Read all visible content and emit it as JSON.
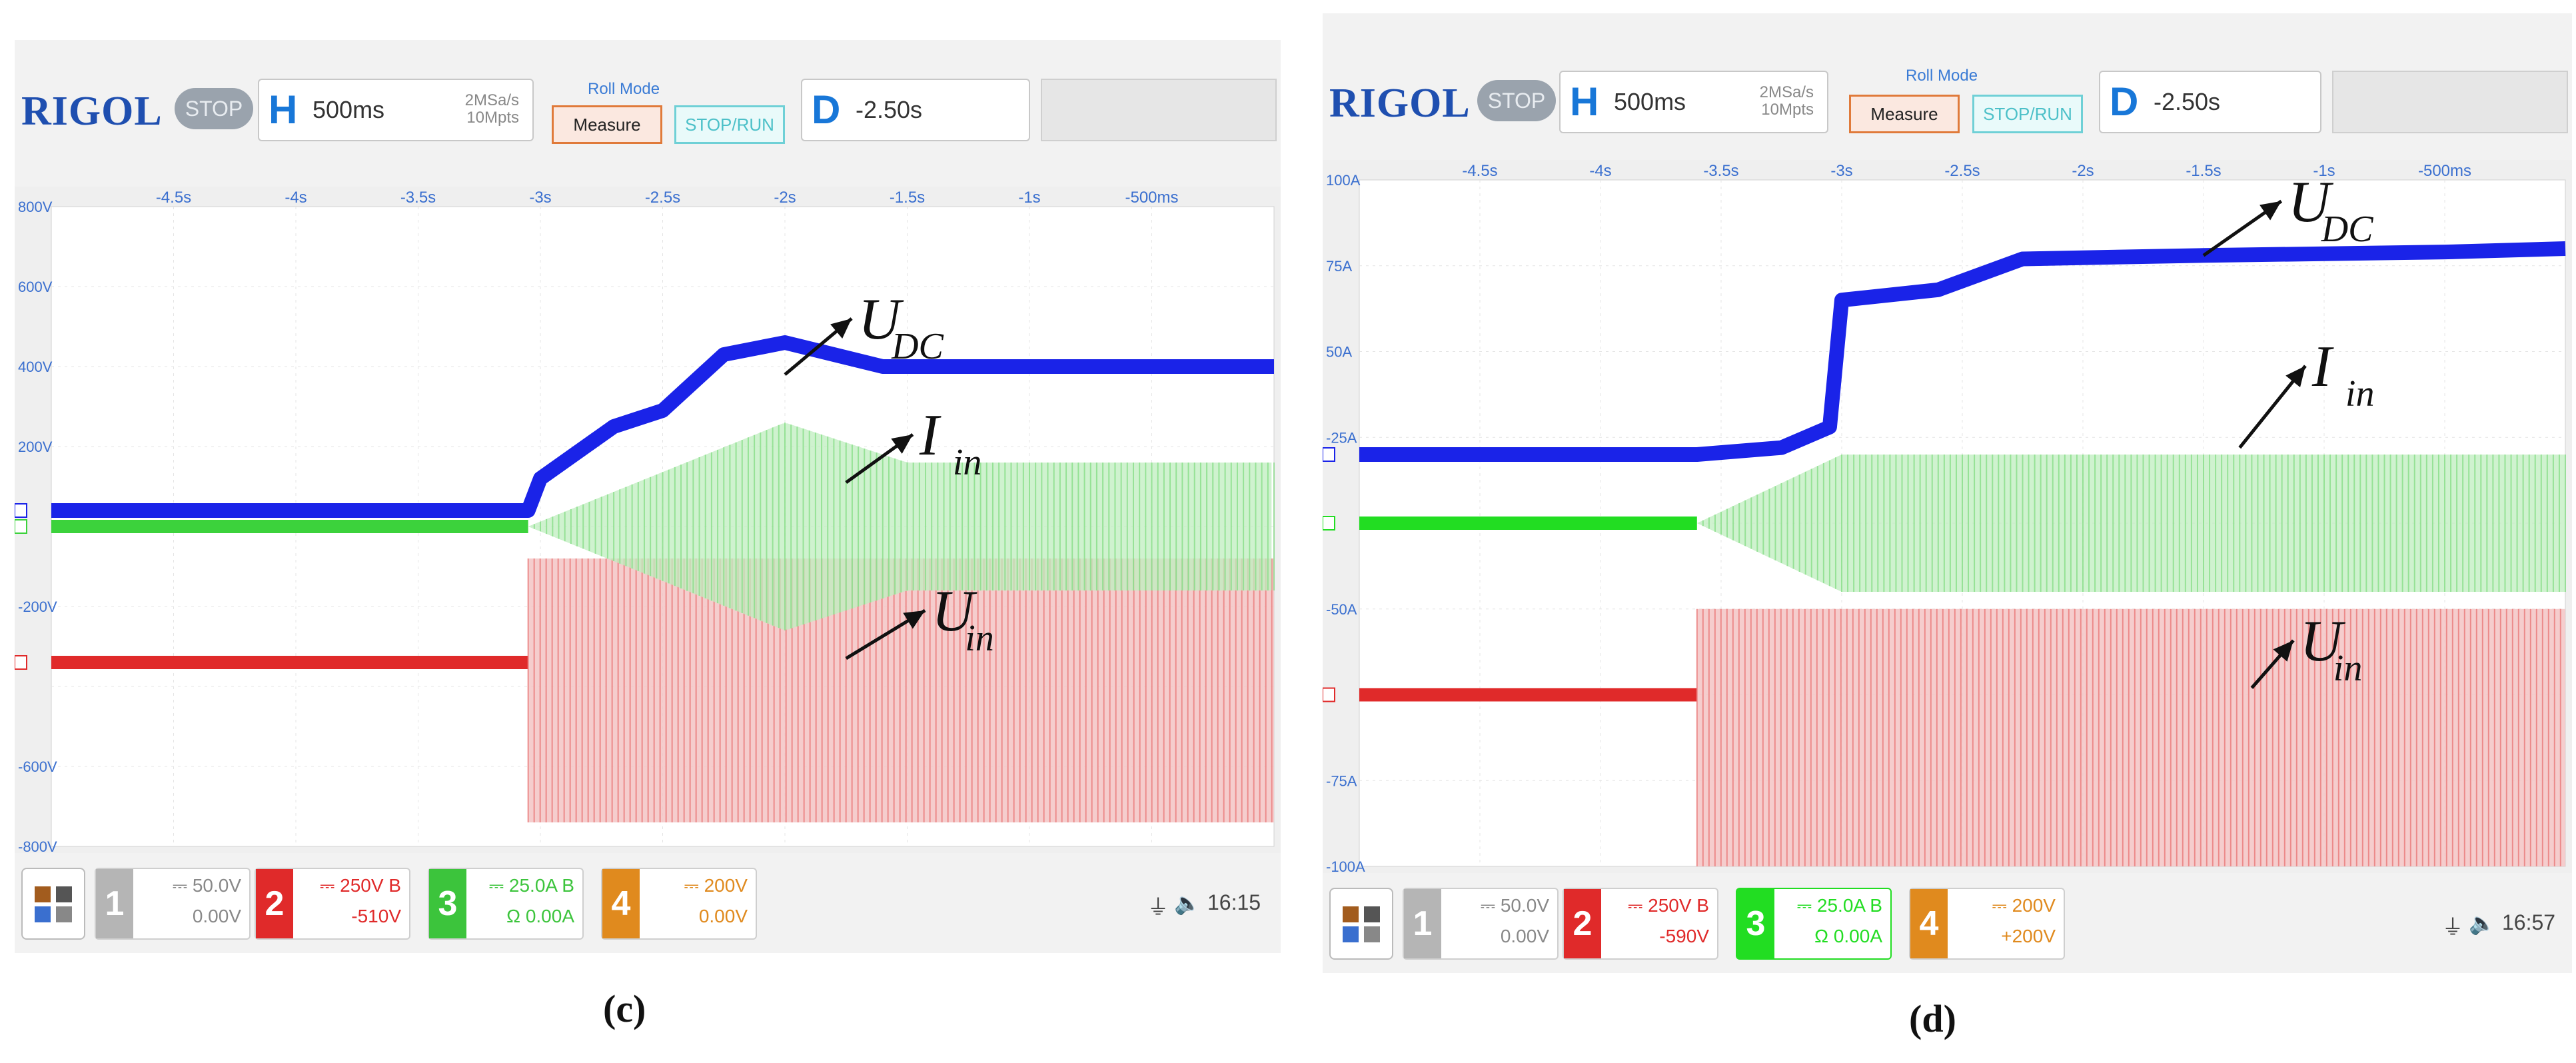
{
  "panels": [
    {
      "caption": "(c)",
      "brand": "RIGOL",
      "run_state": "STOP",
      "horizontal": {
        "letter": "H",
        "timebase": "500ms",
        "sample_rate": "2MSa/s",
        "memory_depth": "10Mpts"
      },
      "roll_mode_label": "Roll Mode",
      "measure_label": "Measure",
      "stop_run_label": "STOP/RUN",
      "delay": {
        "letter": "D",
        "value": "-2.50s"
      },
      "x_ticks": [
        "-4.5s",
        "-4s",
        "-3.5s",
        "-3s",
        "-2.5s",
        "-2s",
        "-1.5s",
        "-1s",
        "-500ms"
      ],
      "y_ticks": [
        "800V",
        "600V",
        "400V",
        "200V",
        "-200V",
        "-600V",
        "-800V"
      ],
      "channels": [
        {
          "num": "1",
          "scale": "50.0V",
          "offset": "0.00V",
          "extra": "",
          "color": "#b5b5b5"
        },
        {
          "num": "2",
          "scale": "250V",
          "offset": "-510V",
          "extra": "B",
          "color": "#e02a2a"
        },
        {
          "num": "3",
          "scale": "25.0A",
          "offset": "0.00A",
          "extra": "B",
          "sub": "Ω",
          "color": "#3cc43c"
        },
        {
          "num": "4",
          "scale": "200V",
          "offset": "0.00V",
          "extra": "",
          "color": "#e08a1e"
        }
      ],
      "time": "16:15",
      "annotations": {
        "udc": "U",
        "udc_sub": "DC",
        "iin": "I",
        "iin_sub": "in",
        "uin": "U",
        "uin_sub": "in"
      }
    },
    {
      "caption": "(d)",
      "brand": "RIGOL",
      "run_state": "STOP",
      "horizontal": {
        "letter": "H",
        "timebase": "500ms",
        "sample_rate": "2MSa/s",
        "memory_depth": "10Mpts"
      },
      "roll_mode_label": "Roll Mode",
      "measure_label": "Measure",
      "stop_run_label": "STOP/RUN",
      "delay": {
        "letter": "D",
        "value": "-2.50s"
      },
      "x_ticks": [
        "-4.5s",
        "-4s",
        "-3.5s",
        "-3s",
        "-2.5s",
        "-2s",
        "-1.5s",
        "-1s",
        "-500ms"
      ],
      "y_ticks": [
        "100A",
        "75A",
        "50A",
        "-25A",
        "-50A",
        "-75A",
        "-100A"
      ],
      "channels": [
        {
          "num": "1",
          "scale": "50.0V",
          "offset": "0.00V",
          "extra": "",
          "color": "#b5b5b5"
        },
        {
          "num": "2",
          "scale": "250V",
          "offset": "-590V",
          "extra": "B",
          "color": "#e02a2a"
        },
        {
          "num": "3",
          "scale": "25.0A",
          "offset": "0.00A",
          "extra": "B",
          "sub": "Ω",
          "color": "#22dd22"
        },
        {
          "num": "4",
          "scale": "200V",
          "offset": "+200V",
          "extra": "",
          "color": "#e08a1e"
        }
      ],
      "time": "16:57",
      "annotations": {
        "udc": "U",
        "udc_sub": "DC",
        "iin": "I",
        "iin_sub": "in",
        "uin": "U",
        "uin_sub": "in"
      }
    }
  ],
  "chart_data": [
    {
      "type": "line",
      "xlim": [
        -5,
        0
      ],
      "ylim": [
        -800,
        800
      ],
      "yunit": "V",
      "series": [
        {
          "name": "U_DC",
          "color": "#1a23e8",
          "x": [
            -5,
            -3.05,
            -3.0,
            -2.7,
            -2.5,
            -2.25,
            -2.0,
            -1.6,
            -1.2,
            0
          ],
          "y": [
            40,
            40,
            120,
            250,
            290,
            430,
            460,
            400,
            400,
            400
          ]
        },
        {
          "name": "I_in",
          "color": "#3cd23c",
          "x": [
            -5,
            -3.05,
            -2.0,
            -1.5,
            0
          ],
          "y": [
            0,
            0,
            260,
            160,
            160
          ],
          "kind": "envelope"
        },
        {
          "name": "U_in",
          "color": "#e02a2a",
          "x": [
            -5,
            -3.05,
            0
          ],
          "y": [
            -340,
            -340,
            -340
          ],
          "kind": "envelope_after"
        }
      ]
    },
    {
      "type": "line",
      "xlim": [
        -5,
        0
      ],
      "ylim": [
        -100,
        100
      ],
      "yunit": "A",
      "series": [
        {
          "name": "U_DC",
          "color": "#1a23e8",
          "x": [
            -5,
            -3.6,
            -3.25,
            -3.05,
            -3.0,
            -2.6,
            -2.25,
            -1.5,
            -0.5,
            0
          ],
          "y": [
            20,
            20,
            22,
            28,
            65,
            68,
            77,
            78,
            79,
            80
          ]
        },
        {
          "name": "I_in",
          "color": "#22dd22",
          "x": [
            -5,
            -3.6,
            -3.0,
            0
          ],
          "y": [
            0,
            0,
            20,
            20
          ],
          "kind": "envelope"
        },
        {
          "name": "U_in",
          "color": "#e02a2a",
          "x": [
            -5,
            -3.6,
            0
          ],
          "y": [
            -50,
            -50,
            -50
          ],
          "kind": "envelope_after"
        }
      ]
    }
  ]
}
